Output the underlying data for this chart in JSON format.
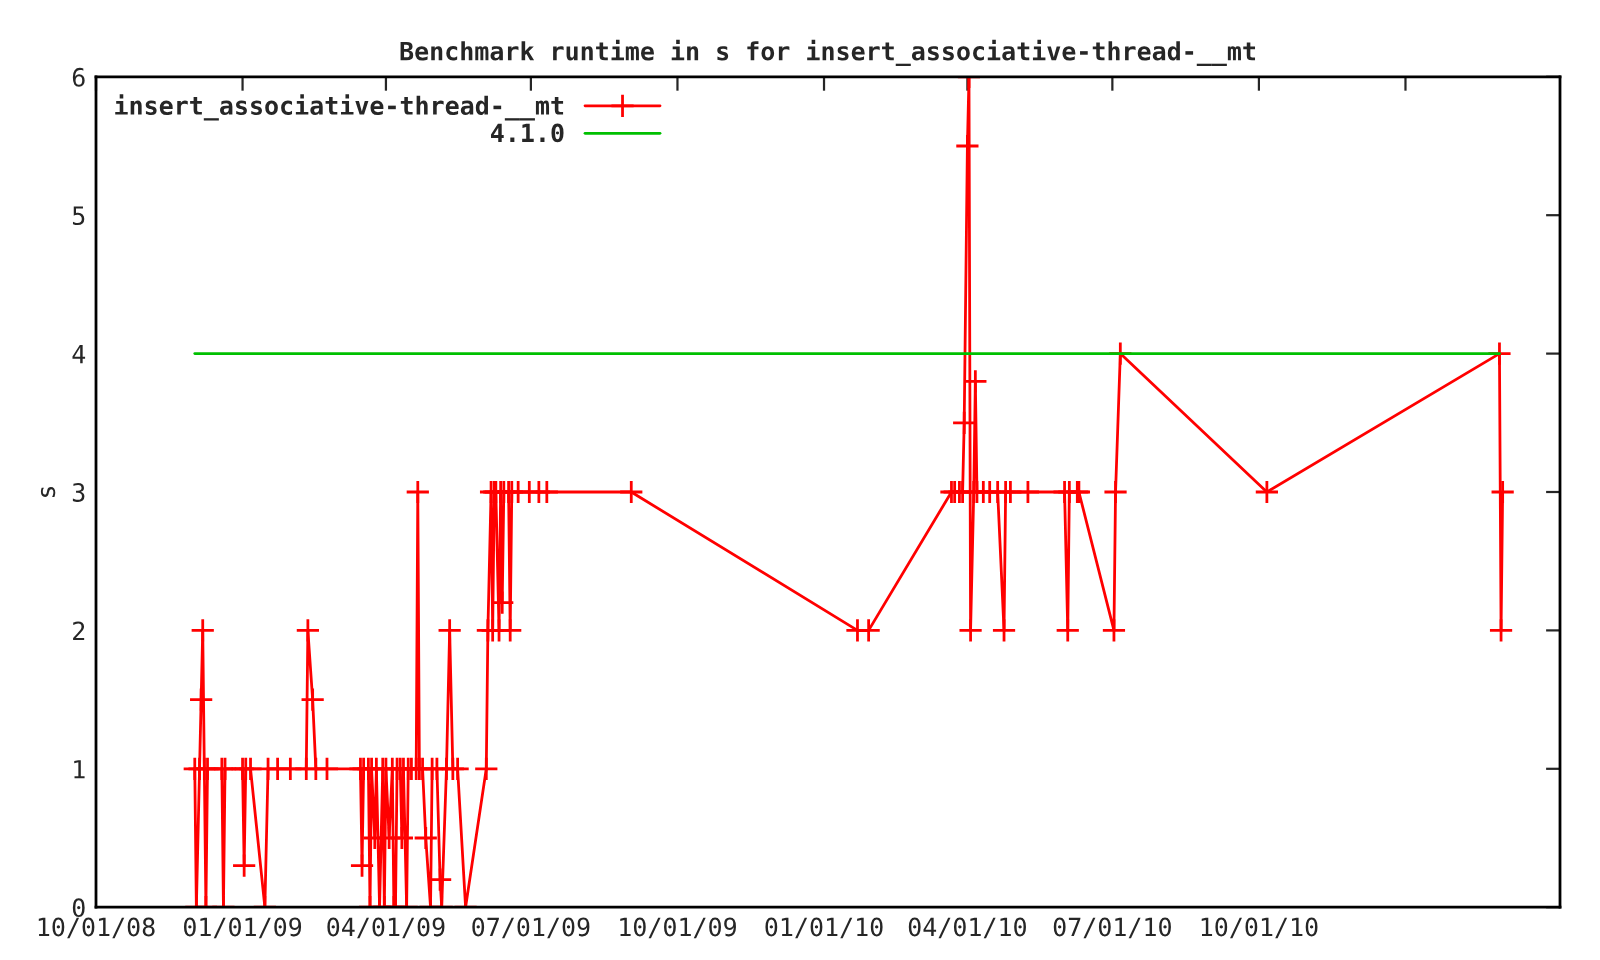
{
  "chart_data": {
    "type": "line",
    "title": "Benchmark runtime in s for insert_associative-thread-__mt",
    "ylabel": "s",
    "xlim": [
      "2008-10-01",
      "2011-04-08"
    ],
    "ylim": [
      0,
      6
    ],
    "yticks": [
      0,
      1,
      2,
      3,
      4,
      5,
      6
    ],
    "xticks": [
      {
        "value": "2008-10-01",
        "label": "10/01/08"
      },
      {
        "value": "2009-01-01",
        "label": "01/01/09"
      },
      {
        "value": "2009-04-01",
        "label": "04/01/09"
      },
      {
        "value": "2009-07-01",
        "label": "07/01/09"
      },
      {
        "value": "2009-10-01",
        "label": "10/01/09"
      },
      {
        "value": "2010-01-01",
        "label": "01/01/10"
      },
      {
        "value": "2010-04-01",
        "label": "04/01/10"
      },
      {
        "value": "2010-07-01",
        "label": "07/01/10"
      },
      {
        "value": "2010-10-01",
        "label": "10/01/10"
      },
      {
        "value": "2011-01-01",
        "label": null
      }
    ],
    "grid": false,
    "legend": "top left",
    "series": [
      {
        "name": "insert_associative-thread-__mt",
        "color": "#ff0000",
        "marker": "cross",
        "x": [
          "2008-12-02",
          "2008-12-03",
          "2008-12-05",
          "2008-12-06",
          "2008-12-07",
          "2008-12-08",
          "2008-12-09",
          "2008-12-10",
          "2008-12-19",
          "2008-12-20",
          "2008-12-21",
          "2009-01-01",
          "2009-01-02",
          "2009-01-03",
          "2009-01-06",
          "2009-01-15",
          "2009-01-17",
          "2009-01-23",
          "2009-01-31",
          "2009-02-10",
          "2009-02-11",
          "2009-02-14",
          "2009-02-16",
          "2009-02-23",
          "2009-03-16",
          "2009-03-17",
          "2009-03-18",
          "2009-03-21",
          "2009-03-22",
          "2009-03-23",
          "2009-03-25",
          "2009-03-26",
          "2009-03-28",
          "2009-03-30",
          "2009-03-31",
          "2009-04-01",
          "2009-04-03",
          "2009-04-05",
          "2009-04-06",
          "2009-04-07",
          "2009-04-08",
          "2009-04-10",
          "2009-04-11",
          "2009-04-12",
          "2009-04-14",
          "2009-04-15",
          "2009-04-17",
          "2009-04-20",
          "2009-04-21",
          "2009-04-22",
          "2009-04-24",
          "2009-04-26",
          "2009-04-29",
          "2009-04-30",
          "2009-05-03",
          "2009-05-05",
          "2009-05-06",
          "2009-05-09",
          "2009-05-11",
          "2009-05-13",
          "2009-05-16",
          "2009-05-21",
          "2009-06-03",
          "2009-06-04",
          "2009-06-06",
          "2009-06-07",
          "2009-06-08",
          "2009-06-09",
          "2009-06-11",
          "2009-06-12",
          "2009-06-13",
          "2009-06-14",
          "2009-06-17",
          "2009-06-18",
          "2009-06-19",
          "2009-06-23",
          "2009-06-30",
          "2009-07-06",
          "2009-07-11",
          "2009-09-02",
          "2010-01-22",
          "2010-01-29",
          "2010-03-22",
          "2010-03-24",
          "2010-03-27",
          "2010-03-29",
          "2010-03-30",
          "2010-04-01",
          "2010-04-02",
          "2010-04-03",
          "2010-04-05",
          "2010-04-06",
          "2010-04-07",
          "2010-04-11",
          "2010-04-15",
          "2010-04-20",
          "2010-04-24",
          "2010-04-25",
          "2010-04-28",
          "2010-05-09",
          "2010-06-01",
          "2010-06-03",
          "2010-06-04",
          "2010-06-09",
          "2010-06-10",
          "2010-07-02",
          "2010-07-03",
          "2010-07-06",
          "2010-10-06",
          "2011-03-01",
          "2011-03-02",
          "2011-03-03"
        ],
        "values": [
          1,
          0,
          1,
          1.5,
          2,
          1,
          0,
          1,
          1,
          0,
          1,
          1,
          0.3,
          1,
          1,
          0,
          1,
          1,
          1,
          1,
          2,
          1.5,
          1,
          1,
          1,
          0.3,
          1,
          1,
          0,
          1,
          0.5,
          1,
          0,
          1,
          0,
          1,
          0.5,
          1,
          0,
          0,
          1,
          1,
          0.5,
          1,
          0,
          1,
          1,
          1,
          3,
          1,
          1,
          0.5,
          0,
          1,
          1,
          0.2,
          0,
          1,
          2,
          1,
          1,
          0,
          1,
          2,
          3,
          2,
          3,
          3,
          2,
          3,
          2.2,
          3,
          3,
          2,
          3,
          3,
          3,
          3,
          3,
          3,
          2,
          2,
          3,
          3,
          3,
          3,
          3.5,
          5.5,
          6,
          2,
          3,
          3.8,
          3,
          3,
          3,
          3,
          2,
          3,
          3,
          3,
          3,
          2,
          3,
          3,
          3,
          2,
          3,
          4,
          3,
          4,
          2,
          3
        ]
      },
      {
        "name": "4.1.0",
        "color": "#00c000",
        "marker": "none",
        "x": [
          "2008-12-02",
          "2011-03-01"
        ],
        "values": [
          4,
          4
        ]
      }
    ]
  }
}
